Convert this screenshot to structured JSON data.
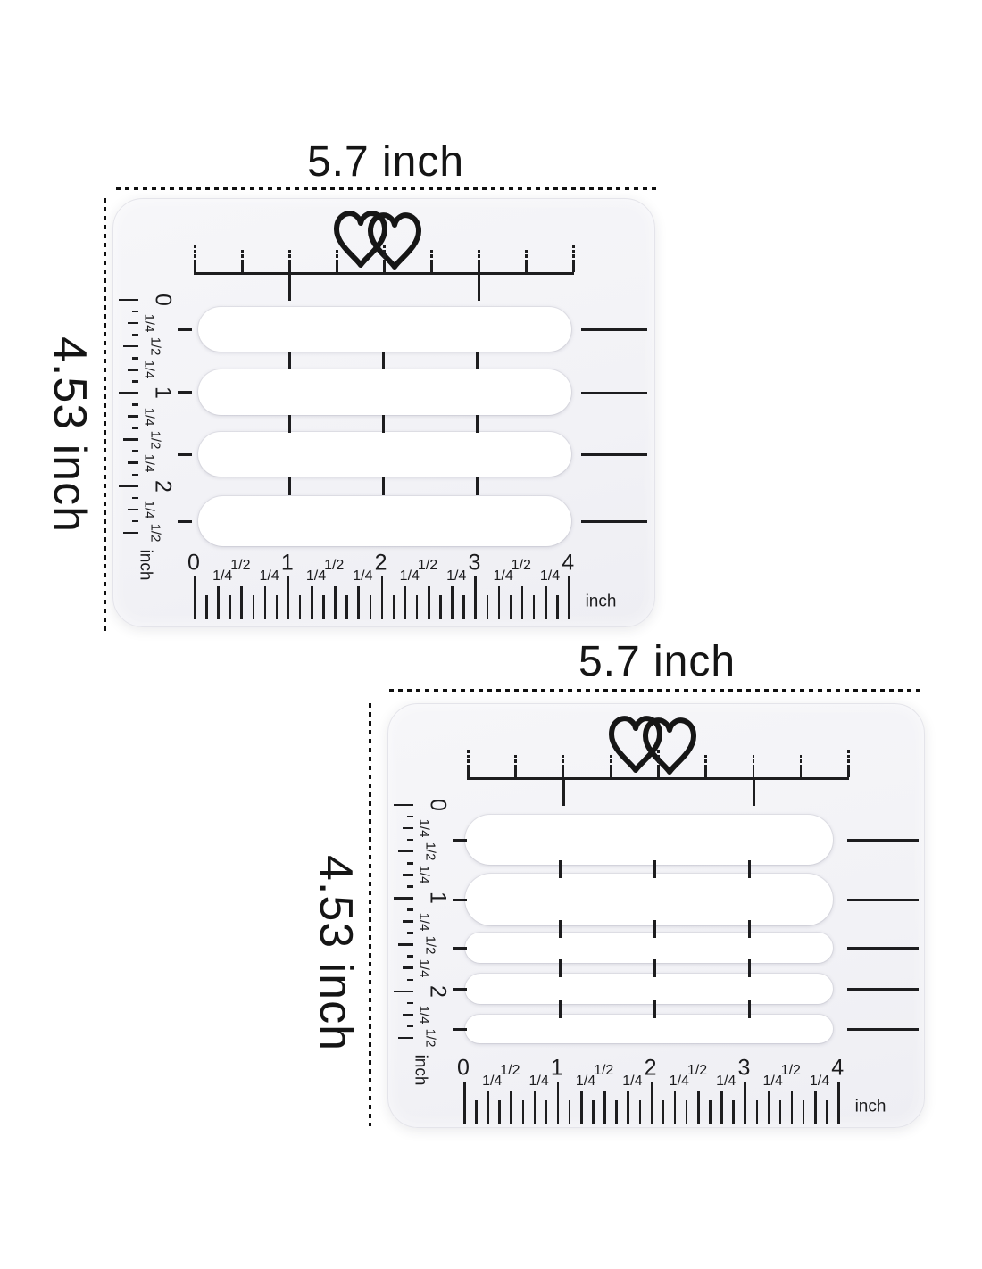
{
  "page_type": "product-dimension-diagram",
  "colors": {
    "background": "#ffffff",
    "card_body": "#f3f3f6",
    "slot_cutout": "#ffffff",
    "ink": "#1b1b1d",
    "annotation": "#101010"
  },
  "icons": {
    "logo": "double-hearts-icon"
  },
  "templates": [
    {
      "id": "top-guide",
      "width_label": "5.7 inch",
      "height_label": "4.53 inch",
      "slot_count": 4,
      "left_ruler": {
        "labels": [
          "0",
          "1/4",
          "1/2",
          "1/4",
          "1",
          "1/4",
          "1/2",
          "1/4",
          "2",
          "1/4",
          "1/2"
        ],
        "unit": "inch"
      },
      "bottom_ruler": {
        "labels": [
          "0",
          "1/4",
          "1/2",
          "1/4",
          "1",
          "1/4",
          "1/2",
          "1/4",
          "2",
          "1/4",
          "1/2",
          "1/4",
          "3",
          "1/4",
          "1/2",
          "1/4",
          "4"
        ],
        "unit": "inch"
      }
    },
    {
      "id": "bottom-guide",
      "width_label": "5.7 inch",
      "height_label": "4.53 inch",
      "slot_count": 5,
      "left_ruler": {
        "labels": [
          "0",
          "1/4",
          "1/2",
          "1/4",
          "1",
          "1/4",
          "1/2",
          "1/4",
          "2",
          "1/4",
          "1/2"
        ],
        "unit": "inch"
      },
      "bottom_ruler": {
        "labels": [
          "0",
          "1/4",
          "1/2",
          "1/4",
          "1",
          "1/4",
          "1/2",
          "1/4",
          "2",
          "1/4",
          "1/2",
          "1/4",
          "3",
          "1/4",
          "1/2",
          "1/4",
          "4"
        ],
        "unit": "inch"
      }
    }
  ]
}
